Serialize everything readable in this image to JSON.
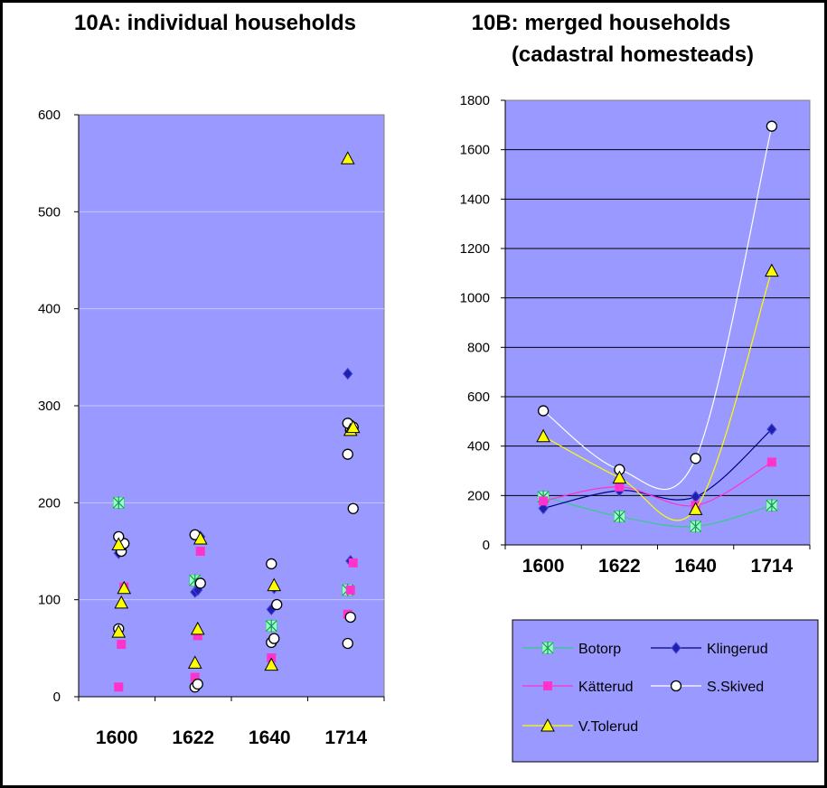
{
  "colors": {
    "plot_area": "#9999ff",
    "botorp": "#99ffcc",
    "klingerud": "#000080",
    "kätterud": "#ff33cc",
    "s_skived": "#ffffff",
    "v_tolerud": "#ffff00"
  },
  "chart_data": [
    {
      "type": "scatter",
      "title": "10A: individual households",
      "categories": [
        "1600",
        "1622",
        "1640",
        "1714"
      ],
      "ylim": [
        0,
        600
      ],
      "yticks": [
        0,
        100,
        200,
        300,
        400,
        500,
        600
      ],
      "grid": true,
      "legend": "none",
      "series": [
        {
          "key": "botorp",
          "points": [
            [
              0,
              200
            ],
            [
              1,
              120
            ],
            [
              2,
              73
            ],
            [
              3,
              110
            ]
          ]
        },
        {
          "key": "klingerud",
          "points": [
            [
              0,
              148
            ],
            [
              0,
              155
            ],
            [
              1,
              108
            ],
            [
              1,
              110
            ],
            [
              1,
              165
            ],
            [
              2,
              90
            ],
            [
              2,
              112
            ],
            [
              3,
              333
            ],
            [
              3,
              140
            ]
          ]
        },
        {
          "key": "kätterud",
          "points": [
            [
              0,
              10
            ],
            [
              0,
              54
            ],
            [
              0,
              113
            ],
            [
              1,
              20
            ],
            [
              1,
              63
            ],
            [
              1,
              150
            ],
            [
              2,
              40
            ],
            [
              3,
              85
            ],
            [
              3,
              110
            ],
            [
              3,
              138
            ]
          ]
        },
        {
          "key": "s_skived",
          "points": [
            [
              0,
              70
            ],
            [
              0,
              150
            ],
            [
              0,
              158
            ],
            [
              0,
              165
            ],
            [
              1,
              10
            ],
            [
              1,
              13
            ],
            [
              1,
              117
            ],
            [
              1,
              167
            ],
            [
              2,
              56
            ],
            [
              2,
              60
            ],
            [
              2,
              95
            ],
            [
              2,
              137
            ],
            [
              3,
              55
            ],
            [
              3,
              82
            ],
            [
              3,
              194
            ],
            [
              3,
              250
            ],
            [
              3,
              275
            ],
            [
              3,
              278
            ],
            [
              3,
              282
            ]
          ]
        },
        {
          "key": "v_tolerud",
          "points": [
            [
              0,
              67
            ],
            [
              0,
              97
            ],
            [
              0,
              112
            ],
            [
              0,
              157
            ],
            [
              1,
              35
            ],
            [
              1,
              70
            ],
            [
              1,
              163
            ],
            [
              2,
              33
            ],
            [
              2,
              115
            ],
            [
              3,
              555
            ],
            [
              3,
              275
            ],
            [
              3,
              278
            ]
          ]
        }
      ]
    },
    {
      "type": "line",
      "title": "10B:       merged households (cadastral homesteads)",
      "title_lines": [
        "10B:       merged households",
        "(cadastral homesteads)"
      ],
      "categories": [
        "1600",
        "1622",
        "1640",
        "1714"
      ],
      "ylim": [
        0,
        1800
      ],
      "yticks": [
        0,
        200,
        400,
        600,
        800,
        1000,
        1200,
        1400,
        1600,
        1800
      ],
      "grid": true,
      "legend": "bottom",
      "series": [
        {
          "key": "botorp",
          "name": "Botorp",
          "values": [
            195,
            115,
            75,
            160
          ]
        },
        {
          "key": "klingerud",
          "name": "Klingerud",
          "values": [
            148,
            220,
            195,
            468
          ]
        },
        {
          "key": "kätterud",
          "name": "Kätterud",
          "values": [
            178,
            235,
            160,
            335
          ]
        },
        {
          "key": "s_skived",
          "name": "S.Skived",
          "values": [
            543,
            305,
            350,
            1695
          ]
        },
        {
          "key": "v_tolerud",
          "name": "V.Tolerud",
          "values": [
            440,
            272,
            145,
            1110
          ]
        }
      ]
    }
  ]
}
